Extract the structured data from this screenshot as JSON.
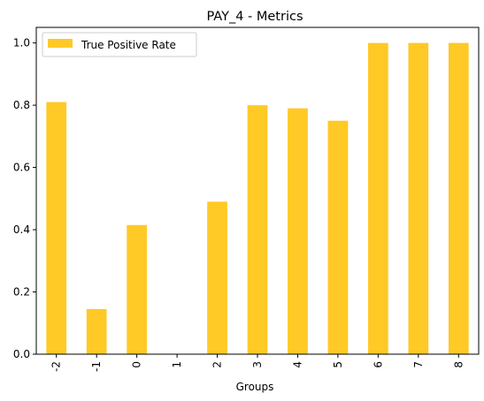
{
  "chart_data": {
    "type": "bar",
    "title": "PAY_4 - Metrics",
    "xlabel": "Groups",
    "ylabel": "",
    "categories": [
      "-2",
      "-1",
      "0",
      "1",
      "2",
      "3",
      "4",
      "5",
      "6",
      "7",
      "8"
    ],
    "series": [
      {
        "name": "True Positive Rate",
        "color": "#FFC926",
        "values": [
          0.81,
          0.145,
          0.415,
          0.0,
          0.49,
          0.8,
          0.79,
          0.75,
          1.0,
          1.0,
          1.0
        ]
      }
    ],
    "ylim": [
      0,
      1.05
    ],
    "yticks": [
      0.0,
      0.2,
      0.4,
      0.6,
      0.8,
      1.0
    ],
    "ytick_labels": [
      "0.0",
      "0.2",
      "0.4",
      "0.6",
      "0.8",
      "1.0"
    ],
    "grid": false,
    "legend_position": "top-left",
    "xtick_rotation": "vertical"
  }
}
